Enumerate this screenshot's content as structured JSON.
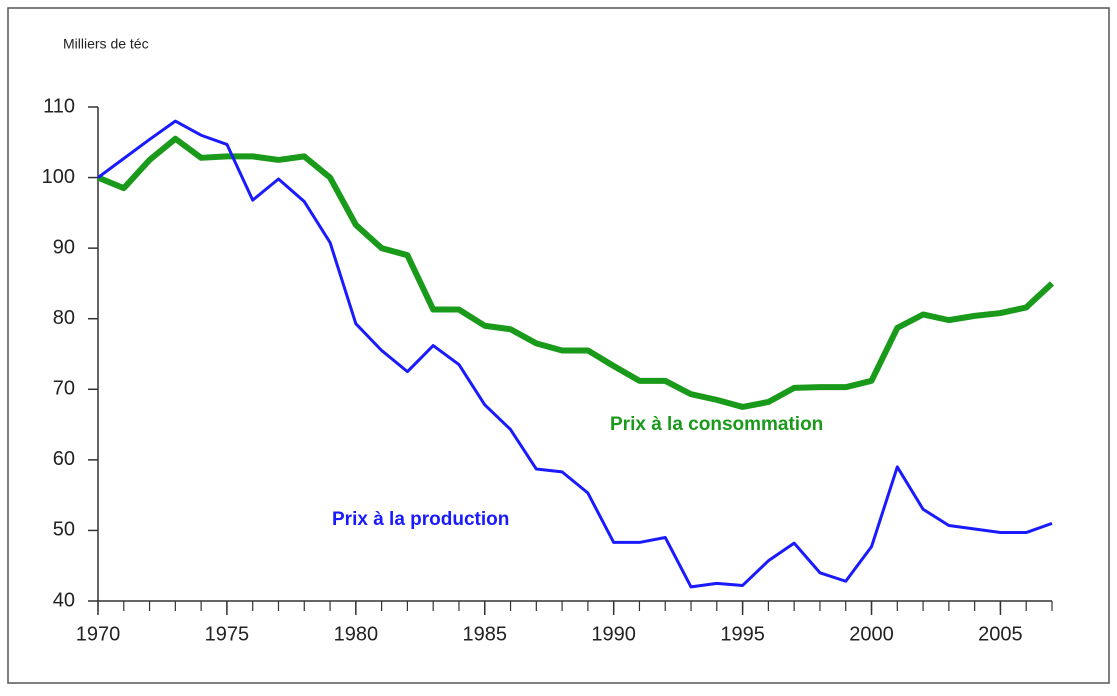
{
  "chart_data": {
    "type": "line",
    "y_axis_label": "Milliers de téc",
    "x": [
      1970,
      1971,
      1972,
      1973,
      1974,
      1975,
      1976,
      1977,
      1978,
      1979,
      1980,
      1981,
      1982,
      1983,
      1984,
      1985,
      1986,
      1987,
      1988,
      1989,
      1990,
      1991,
      1992,
      1993,
      1994,
      1995,
      1996,
      1997,
      1998,
      1999,
      2000,
      2001,
      2002,
      2003,
      2004,
      2005,
      2006,
      2007
    ],
    "series": [
      {
        "name": "Prix à la consommation",
        "color": "#1a9a1a",
        "width": 6,
        "values": [
          100,
          98.5,
          102.5,
          105.5,
          102.8,
          103,
          103,
          102.5,
          103,
          100,
          93.3,
          90,
          89,
          81.3,
          81.3,
          79,
          78.5,
          76.5,
          75.5,
          75.5,
          73.3,
          71.2,
          71.2,
          69.3,
          68.5,
          67.5,
          68.2,
          70.2,
          70.3,
          70.3,
          71.2,
          78.7,
          80.6,
          79.8,
          80.4,
          80.8,
          81.6,
          85
        ]
      },
      {
        "name": "Prix à la production",
        "color": "#1a1aff",
        "width": 3,
        "values": [
          100,
          102.7,
          105.4,
          108,
          106,
          104.7,
          96.8,
          99.8,
          96.6,
          90.8,
          79.3,
          75.5,
          72.5,
          76.2,
          73.5,
          67.8,
          64.3,
          58.7,
          58.3,
          55.3,
          48.3,
          48.3,
          49,
          42,
          42.5,
          42.2,
          45.7,
          48.2,
          44,
          42.8,
          47.7,
          59,
          53,
          50.7,
          50.2,
          49.7,
          49.7,
          51
        ]
      }
    ],
    "xlim": [
      1970,
      2007
    ],
    "xticks": [
      1970,
      1975,
      1980,
      1985,
      1990,
      1995,
      2000,
      2005
    ],
    "ylim": [
      40,
      110
    ],
    "yticks": [
      40,
      50,
      60,
      70,
      80,
      90,
      100,
      110
    ],
    "grid": false
  }
}
